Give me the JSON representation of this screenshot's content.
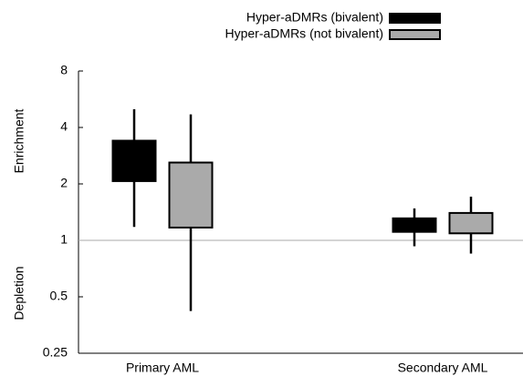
{
  "chart_data": {
    "type": "box",
    "categories": [
      "Primary AML",
      "Secondary AML"
    ],
    "ylabel": {
      "upper": "Enrichment",
      "lower": "Depletion"
    },
    "yscale": "log",
    "ylim": [
      0.25,
      8
    ],
    "yticks": [
      0.25,
      0.5,
      1,
      2,
      4,
      8
    ],
    "reference_line": 1,
    "legend": "top-right",
    "series": [
      {
        "name": "Hyper-aDMRs (bivalent)",
        "color": "#000000",
        "values": [
          {
            "whislo": 1.18,
            "q1": 2.07,
            "q3": 3.4,
            "whishi": 5.0
          },
          {
            "whislo": 0.93,
            "q1": 1.11,
            "q3": 1.31,
            "whishi": 1.48
          }
        ]
      },
      {
        "name": "Hyper-aDMRs (not bivalent)",
        "color": "#aaaaaa",
        "values": [
          {
            "whislo": 0.42,
            "q1": 1.17,
            "q3": 2.6,
            "whishi": 4.7
          },
          {
            "whislo": 0.85,
            "q1": 1.09,
            "q3": 1.4,
            "whishi": 1.71
          }
        ]
      }
    ]
  }
}
